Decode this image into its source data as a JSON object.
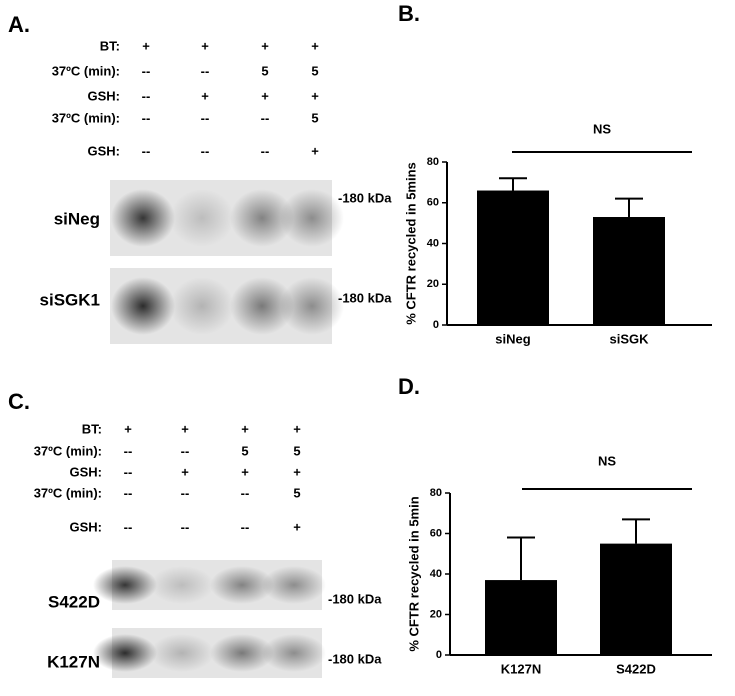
{
  "panels": [
    {
      "letter": "A.",
      "rows": [
        [
          "BT:",
          "+",
          "+",
          "+",
          "+"
        ],
        [
          "37ºC (min):",
          "--",
          "--",
          "5",
          "5"
        ],
        [
          "GSH:",
          "--",
          "+",
          "+",
          "+"
        ],
        [
          "37ºC (min):",
          "--",
          "--",
          "--",
          "5"
        ],
        [
          "GSH:",
          "--",
          "--",
          "--",
          "+"
        ]
      ],
      "blots": [
        {
          "label": "siNeg",
          "marker": "-180 kDa"
        },
        {
          "label": "siSGK1",
          "marker": "-180 kDa"
        }
      ]
    },
    {
      "letter": "C.",
      "rows": [
        [
          "BT:",
          "+",
          "+",
          "+",
          "+"
        ],
        [
          "37ºC (min):",
          "--",
          "--",
          "5",
          "5"
        ],
        [
          "GSH:",
          "--",
          "+",
          "+",
          "+"
        ],
        [
          "37ºC (min):",
          "--",
          "--",
          "--",
          "5"
        ],
        [
          "GSH:",
          "--",
          "--",
          "--",
          "+"
        ]
      ],
      "blots": [
        {
          "label": "S422D",
          "marker": "-180 kDa"
        },
        {
          "label": "K127N",
          "marker": "-180 kDa"
        }
      ]
    }
  ],
  "chart_data": [
    {
      "type": "bar",
      "letter": "B.",
      "y_label": "% CFTR recycled  in 5mins",
      "annotation": "NS",
      "categories": [
        "siNeg",
        "siSGK"
      ],
      "values": [
        66,
        53
      ],
      "errors": [
        6,
        9
      ],
      "color": "#000000",
      "ylim": [
        0,
        80
      ],
      "yticks": [
        0,
        20,
        40,
        60,
        80
      ]
    },
    {
      "type": "bar",
      "letter": "D.",
      "y_label": "% CFTR recycled  in 5min",
      "annotation": "NS",
      "categories": [
        "K127N",
        "S422D"
      ],
      "values": [
        37,
        55
      ],
      "errors": [
        21,
        12
      ],
      "color": "#000000",
      "ylim": [
        0,
        80
      ],
      "yticks": [
        0,
        20,
        40,
        60,
        80
      ]
    }
  ]
}
